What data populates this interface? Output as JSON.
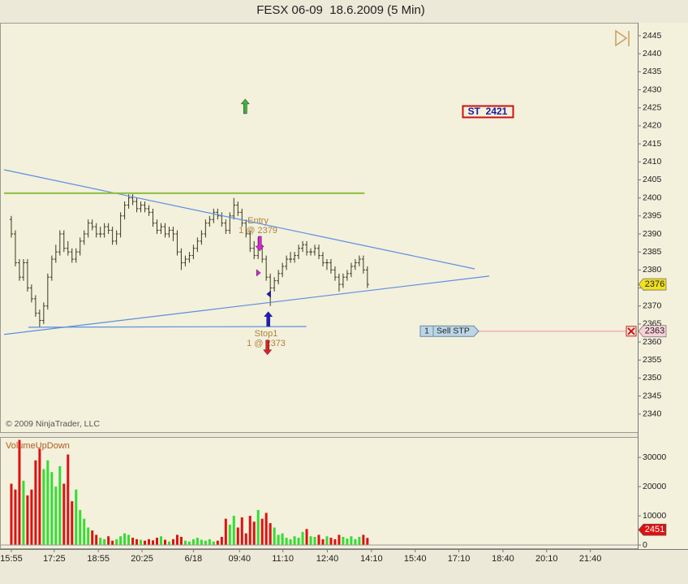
{
  "chart_data": [
    {
      "type": "ohlc",
      "title": "FESX 06-09  18.6.2009 (5 Min)",
      "copyright": "© 2009 NinjaTrader, LLC",
      "bar_color": "#3a3a1a",
      "grid": false,
      "ylim": [
        2335,
        2448.6
      ],
      "yticks": [
        2340,
        2345,
        2350,
        2355,
        2360,
        2365,
        2370,
        2375,
        2380,
        2385,
        2390,
        2395,
        2400,
        2405,
        2410,
        2415,
        2420,
        2425,
        2430,
        2435,
        2440,
        2445
      ],
      "xlim": [
        -2.8,
        154.8
      ],
      "xticks": [
        {
          "value": 0,
          "label": "15:55"
        },
        {
          "value": 10.6,
          "label": "17:25"
        },
        {
          "value": 21.5,
          "label": "18:55"
        },
        {
          "value": 32.3,
          "label": "20:25"
        },
        {
          "value": 45,
          "label": "6/18"
        },
        {
          "value": 56.4,
          "label": "09:40"
        },
        {
          "value": 67.1,
          "label": "11:10"
        },
        {
          "value": 78.1,
          "label": "12:40"
        },
        {
          "value": 89,
          "label": "14:10"
        },
        {
          "value": 99.8,
          "label": "15:40"
        },
        {
          "value": 110.6,
          "label": "17:10"
        },
        {
          "value": 121.5,
          "label": "18:40"
        },
        {
          "value": 132.3,
          "label": "20:10"
        },
        {
          "value": 143.1,
          "label": "21:40"
        }
      ],
      "ohlc": [
        [
          2394,
          2395,
          2389,
          2390
        ],
        [
          2390,
          2391,
          2381,
          2382
        ],
        [
          2382,
          2383,
          2377,
          2378
        ],
        [
          2378,
          2383,
          2377,
          2382
        ],
        [
          2382,
          2383,
          2374,
          2375
        ],
        [
          2375,
          2376,
          2371,
          2372
        ],
        [
          2372,
          2373,
          2367,
          2368
        ],
        [
          2368,
          2369,
          2364,
          2366
        ],
        [
          2366,
          2371,
          2365,
          2370
        ],
        [
          2370,
          2379,
          2369,
          2378
        ],
        [
          2378,
          2384,
          2377,
          2383
        ],
        [
          2383,
          2387,
          2382,
          2385
        ],
        [
          2385,
          2391,
          2384,
          2390
        ],
        [
          2390,
          2391,
          2385,
          2386
        ],
        [
          2386,
          2388,
          2384,
          2385
        ],
        [
          2385,
          2386,
          2382,
          2383
        ],
        [
          2383,
          2386,
          2382,
          2385
        ],
        [
          2385,
          2389,
          2384,
          2388
        ],
        [
          2388,
          2391,
          2387,
          2390
        ],
        [
          2390,
          2394,
          2389,
          2393
        ],
        [
          2393,
          2394,
          2391,
          2392
        ],
        [
          2392,
          2393,
          2389,
          2390
        ],
        [
          2390,
          2392,
          2389,
          2390
        ],
        [
          2390,
          2393,
          2389,
          2392
        ],
        [
          2392,
          2393,
          2390,
          2391
        ],
        [
          2391,
          2392,
          2387,
          2388
        ],
        [
          2388,
          2391,
          2387,
          2390
        ],
        [
          2390,
          2396,
          2389,
          2395
        ],
        [
          2395,
          2399,
          2394,
          2398
        ],
        [
          2398,
          2401,
          2397,
          2400
        ],
        [
          2400,
          2401,
          2398,
          2399
        ],
        [
          2399,
          2400,
          2396,
          2397
        ],
        [
          2397,
          2399,
          2396,
          2398
        ],
        [
          2398,
          2399,
          2396,
          2397
        ],
        [
          2397,
          2398,
          2395,
          2396
        ],
        [
          2396,
          2397,
          2392,
          2393
        ],
        [
          2393,
          2394,
          2390,
          2391
        ],
        [
          2391,
          2393,
          2390,
          2392
        ],
        [
          2392,
          2393,
          2389,
          2390
        ],
        [
          2390,
          2392,
          2389,
          2391
        ],
        [
          2391,
          2392,
          2388,
          2390
        ],
        [
          2390,
          2391,
          2384,
          2385
        ],
        [
          2385,
          2386,
          2380,
          2382
        ],
        [
          2382,
          2384,
          2381,
          2383
        ],
        [
          2383,
          2385,
          2382,
          2384
        ],
        [
          2384,
          2387,
          2383,
          2386
        ],
        [
          2386,
          2389,
          2385,
          2388
        ],
        [
          2388,
          2391,
          2387,
          2390
        ],
        [
          2390,
          2394,
          2389,
          2393
        ],
        [
          2393,
          2395,
          2392,
          2394
        ],
        [
          2394,
          2397,
          2393,
          2396
        ],
        [
          2396,
          2397,
          2394,
          2395
        ],
        [
          2395,
          2396,
          2392,
          2393
        ],
        [
          2393,
          2394,
          2390,
          2391
        ],
        [
          2391,
          2396,
          2390,
          2395
        ],
        [
          2395,
          2400,
          2394,
          2398
        ],
        [
          2398,
          2399,
          2395,
          2396
        ],
        [
          2396,
          2397,
          2392,
          2393
        ],
        [
          2393,
          2394,
          2389,
          2390
        ],
        [
          2390,
          2391,
          2385,
          2386
        ],
        [
          2386,
          2388,
          2383,
          2384
        ],
        [
          2384,
          2389,
          2383,
          2386
        ],
        [
          2386,
          2387,
          2382,
          2383
        ],
        [
          2383,
          2384,
          2377,
          2378
        ],
        [
          2378,
          2379,
          2370,
          2375
        ],
        [
          2375,
          2378,
          2374,
          2377
        ],
        [
          2377,
          2380,
          2376,
          2379
        ],
        [
          2379,
          2382,
          2378,
          2381
        ],
        [
          2381,
          2384,
          2380,
          2383
        ],
        [
          2383,
          2385,
          2382,
          2383
        ],
        [
          2383,
          2385,
          2382,
          2384
        ],
        [
          2384,
          2387,
          2383,
          2386
        ],
        [
          2386,
          2388,
          2385,
          2387
        ],
        [
          2387,
          2388,
          2384,
          2385
        ],
        [
          2385,
          2386,
          2384,
          2385
        ],
        [
          2385,
          2387,
          2384,
          2386
        ],
        [
          2386,
          2387,
          2383,
          2384
        ],
        [
          2384,
          2385,
          2381,
          2382
        ],
        [
          2382,
          2383,
          2380,
          2382
        ],
        [
          2382,
          2383,
          2379,
          2380
        ],
        [
          2380,
          2381,
          2377,
          2378
        ],
        [
          2378,
          2379,
          2374,
          2376
        ],
        [
          2376,
          2379,
          2375,
          2378
        ],
        [
          2378,
          2380,
          2377,
          2379
        ],
        [
          2379,
          2382,
          2378,
          2381
        ],
        [
          2381,
          2383,
          2380,
          2382
        ],
        [
          2382,
          2384,
          2381,
          2383
        ],
        [
          2383,
          2384,
          2379,
          2380
        ],
        [
          2380,
          2381,
          2375,
          2376
        ]
      ],
      "trend_lines": [
        {
          "color": "#5b8fe0",
          "x": [
            -1.8,
            114.5
          ],
          "y": [
            2407.8,
            2380.3
          ]
        },
        {
          "color": "#5b8fe0",
          "x": [
            -1.8,
            118.1
          ],
          "y": [
            2362.1,
            2378.3
          ]
        },
        {
          "color": "#5b8fe0",
          "x": [
            4.2,
            72.9
          ],
          "y": [
            2364.1,
            2364.3
          ]
        },
        {
          "color": "#8cc040",
          "x": [
            -1.8,
            87.3
          ],
          "y": [
            2401.3,
            2401.3
          ]
        }
      ],
      "markers": [
        {
          "shape": "arrow-up",
          "color": "#3cb43c",
          "x": 57.8,
          "y": 2425.4
        },
        {
          "shape": "arrow-down",
          "color": "#e020e0",
          "x": 61.4,
          "y": 2387.3
        },
        {
          "shape": "triangle-right",
          "color": "#e020e0",
          "x": 61,
          "y": 2379.2
        },
        {
          "shape": "triangle-left",
          "color": "#1a1ad0",
          "x": 63.7,
          "y": 2373.3
        },
        {
          "shape": "arrow-up",
          "color": "#1a1ad0",
          "x": 63.5,
          "y": 2366.4
        },
        {
          "shape": "arrow-down",
          "color": "#e02020",
          "x": 63.3,
          "y": 2358.5
        }
      ],
      "annotations": [
        "Entry",
        "1 @ 2379",
        "Stop1",
        "1 @ 2373",
        "ST  2421"
      ],
      "order": {
        "quantity": 1,
        "type": "Sell STP",
        "price": 2363,
        "color": "#f0b0b8"
      }
    },
    {
      "type": "bar",
      "title": "VolumeUpDown",
      "up_color": "#33dd33",
      "down_color": "#dd1111",
      "ylim": [
        -1100,
        37000
      ],
      "yticks": [
        0,
        10000,
        20000,
        30000
      ],
      "values": [
        21000,
        19000,
        36000,
        22000,
        17000,
        19000,
        29000,
        33000,
        26000,
        29000,
        25000,
        20000,
        27000,
        21000,
        31000,
        15000,
        19000,
        12000,
        9000,
        6000,
        5000,
        3500,
        2500,
        2000,
        3000,
        1500,
        2000,
        3000,
        4000,
        3500,
        2500,
        2000,
        1800,
        1500,
        2000,
        1600,
        2500,
        3000,
        1800,
        1200,
        2000,
        3500,
        2800,
        1500,
        1200,
        2000,
        2500,
        1800,
        1500,
        2000,
        1200,
        1500,
        2800,
        9000,
        7000,
        10000,
        6000,
        9500,
        4000,
        10000,
        8000,
        12000,
        9000,
        11000,
        7500,
        6000,
        3500,
        4000,
        2500,
        2000,
        3000,
        2500,
        4500,
        5500,
        3000,
        2800,
        3500,
        2000,
        3000,
        2500,
        2000,
        3500,
        2800,
        2200,
        3000,
        2000,
        2800,
        3500,
        2451
      ]
    }
  ]
}
